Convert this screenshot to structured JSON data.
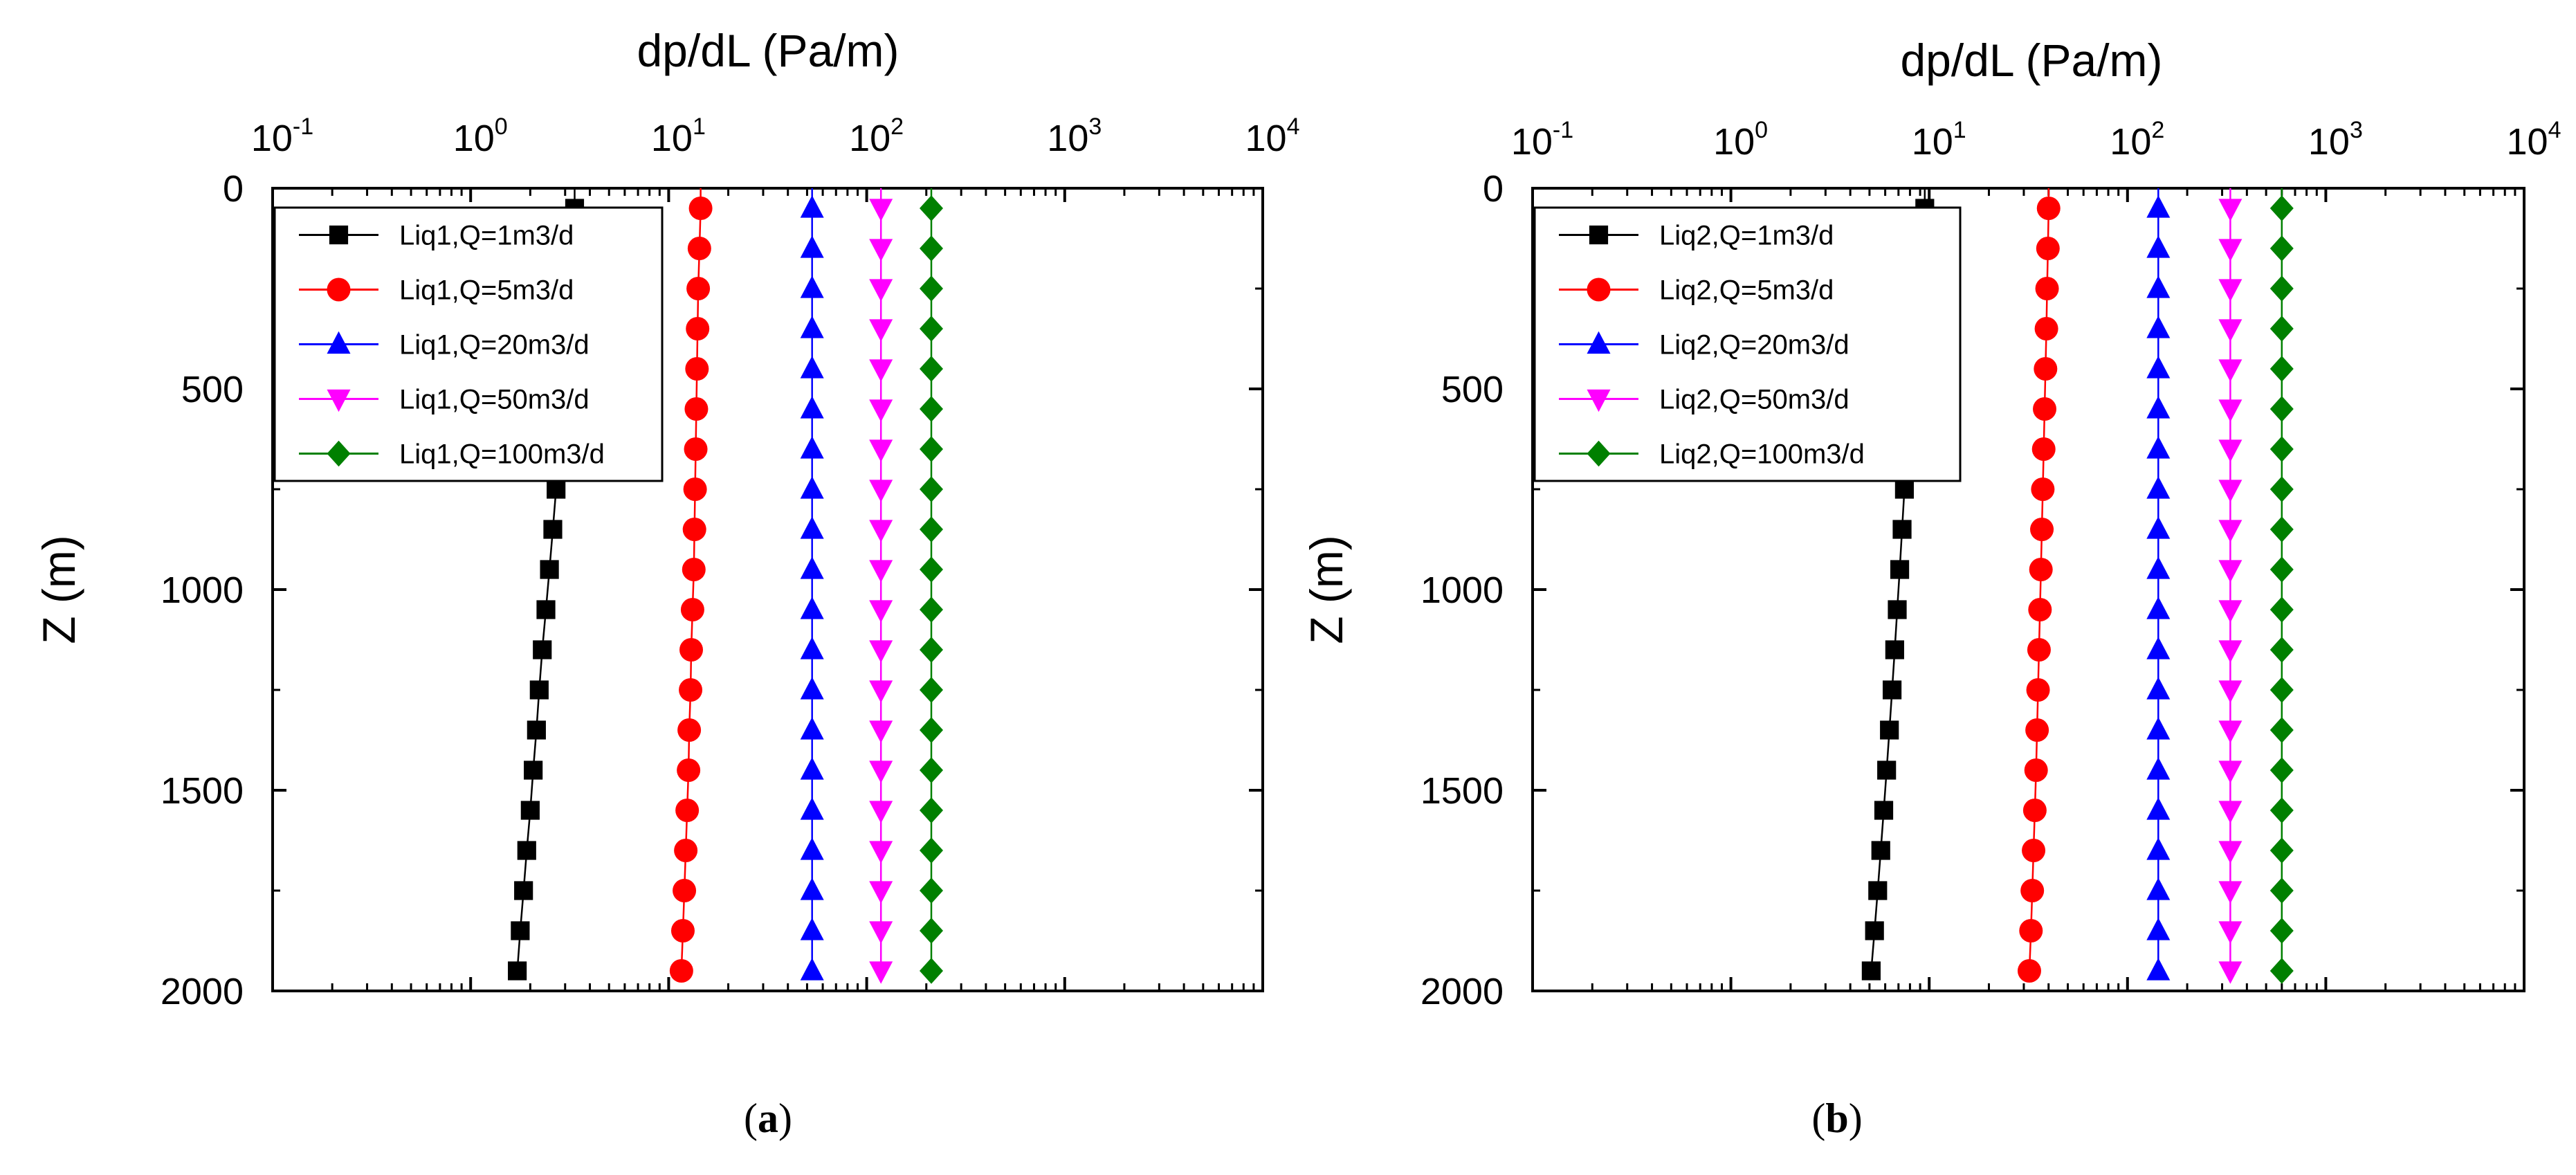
{
  "chart_data": [
    {
      "type": "scatter",
      "panel_label": "a",
      "title": "",
      "xlabel": "dp/dL (Pa/m)",
      "ylabel": "Z (m)",
      "xscale": "log",
      "xlim": [
        0.1,
        10000
      ],
      "ylim": [
        0,
        2000
      ],
      "y_inverted": true,
      "x_tick_base": "10",
      "x_tick_exponents": [
        "-1",
        "0",
        "1",
        "2",
        "3",
        "4"
      ],
      "y_ticks": [
        "0",
        "500",
        "1000",
        "1500",
        "2000"
      ],
      "y_tick_values": [
        0,
        500,
        1000,
        1500,
        2000
      ],
      "legend_position": "top-left",
      "z": [
        50,
        150,
        250,
        350,
        450,
        550,
        650,
        750,
        850,
        950,
        1050,
        1150,
        1250,
        1350,
        1450,
        1550,
        1650,
        1750,
        1850,
        1950
      ],
      "series": [
        {
          "name": "Liq1,Q=1m3/d",
          "color": "#000000",
          "marker": "square",
          "values": [
            3.35,
            3.2,
            3.1,
            3.0,
            2.9,
            2.8,
            2.75,
            2.7,
            2.6,
            2.5,
            2.4,
            2.3,
            2.22,
            2.15,
            2.07,
            2.0,
            1.92,
            1.85,
            1.78,
            1.72
          ]
        },
        {
          "name": "Liq1,Q=5m3/d",
          "color": "#ff0000",
          "marker": "circle",
          "values": [
            14.5,
            14.3,
            14.1,
            14.0,
            13.9,
            13.8,
            13.7,
            13.6,
            13.5,
            13.4,
            13.2,
            13.0,
            12.9,
            12.7,
            12.6,
            12.4,
            12.2,
            12.0,
            11.8,
            11.6
          ]
        },
        {
          "name": "Liq1,Q=20m3/d",
          "color": "#0000ff",
          "marker": "triangle-up",
          "values": [
            53,
            53,
            53,
            53,
            53,
            53,
            53,
            53,
            53,
            53,
            53,
            53,
            53,
            53,
            53,
            53,
            53,
            53,
            53,
            53
          ]
        },
        {
          "name": "Liq1,Q=50m3/d",
          "color": "#ff00ff",
          "marker": "triangle-down",
          "values": [
            118,
            118,
            118,
            118,
            118,
            118,
            118,
            118,
            118,
            118,
            118,
            118,
            118,
            118,
            118,
            118,
            118,
            118,
            118,
            118
          ]
        },
        {
          "name": "Liq1,Q=100m3/d",
          "color": "#008000",
          "marker": "diamond",
          "values": [
            212,
            212,
            212,
            212,
            212,
            212,
            212,
            212,
            212,
            212,
            212,
            212,
            212,
            212,
            212,
            212,
            212,
            212,
            212,
            212
          ]
        }
      ]
    },
    {
      "type": "scatter",
      "panel_label": "b",
      "title": "",
      "xlabel": "dp/dL (Pa/m)",
      "ylabel": "Z (m)",
      "xscale": "log",
      "xlim": [
        0.1,
        10000
      ],
      "ylim": [
        0,
        2000
      ],
      "y_inverted": true,
      "x_tick_base": "10",
      "x_tick_exponents": [
        "-1",
        "0",
        "1",
        "2",
        "3",
        "4"
      ],
      "y_ticks": [
        "0",
        "500",
        "1000",
        "1500",
        "2000"
      ],
      "y_tick_values": [
        0,
        500,
        1000,
        1500,
        2000
      ],
      "legend_position": "top-left",
      "z": [
        50,
        150,
        250,
        350,
        450,
        550,
        650,
        750,
        850,
        950,
        1050,
        1150,
        1250,
        1350,
        1450,
        1550,
        1650,
        1750,
        1850,
        1950
      ],
      "series": [
        {
          "name": "Liq2,Q=1m3/d",
          "color": "#000000",
          "marker": "square",
          "values": [
            9.5,
            9.2,
            8.9,
            8.6,
            8.3,
            8.0,
            7.8,
            7.5,
            7.3,
            7.1,
            6.9,
            6.7,
            6.5,
            6.3,
            6.1,
            5.9,
            5.7,
            5.5,
            5.3,
            5.1
          ]
        },
        {
          "name": "Liq2,Q=5m3/d",
          "color": "#ff0000",
          "marker": "circle",
          "values": [
            40,
            39.7,
            39.3,
            39.0,
            38.6,
            38.2,
            37.8,
            37.4,
            37.0,
            36.6,
            36.2,
            35.8,
            35.4,
            35.0,
            34.6,
            34.1,
            33.6,
            33.1,
            32.6,
            32.0
          ]
        },
        {
          "name": "Liq2,Q=20m3/d",
          "color": "#0000ff",
          "marker": "triangle-up",
          "values": [
            143,
            143,
            143,
            143,
            143,
            143,
            143,
            143,
            143,
            143,
            143,
            143,
            143,
            143,
            143,
            143,
            143,
            143,
            143,
            143
          ]
        },
        {
          "name": "Liq2,Q=50m3/d",
          "color": "#ff00ff",
          "marker": "triangle-down",
          "values": [
            330,
            330,
            330,
            330,
            330,
            330,
            330,
            330,
            330,
            330,
            330,
            330,
            330,
            330,
            330,
            330,
            330,
            330,
            330,
            330
          ]
        },
        {
          "name": "Liq2,Q=100m3/d",
          "color": "#008000",
          "marker": "diamond",
          "values": [
            600,
            600,
            600,
            600,
            600,
            600,
            600,
            600,
            600,
            600,
            600,
            600,
            600,
            600,
            600,
            600,
            600,
            600,
            600,
            600
          ]
        }
      ]
    }
  ]
}
